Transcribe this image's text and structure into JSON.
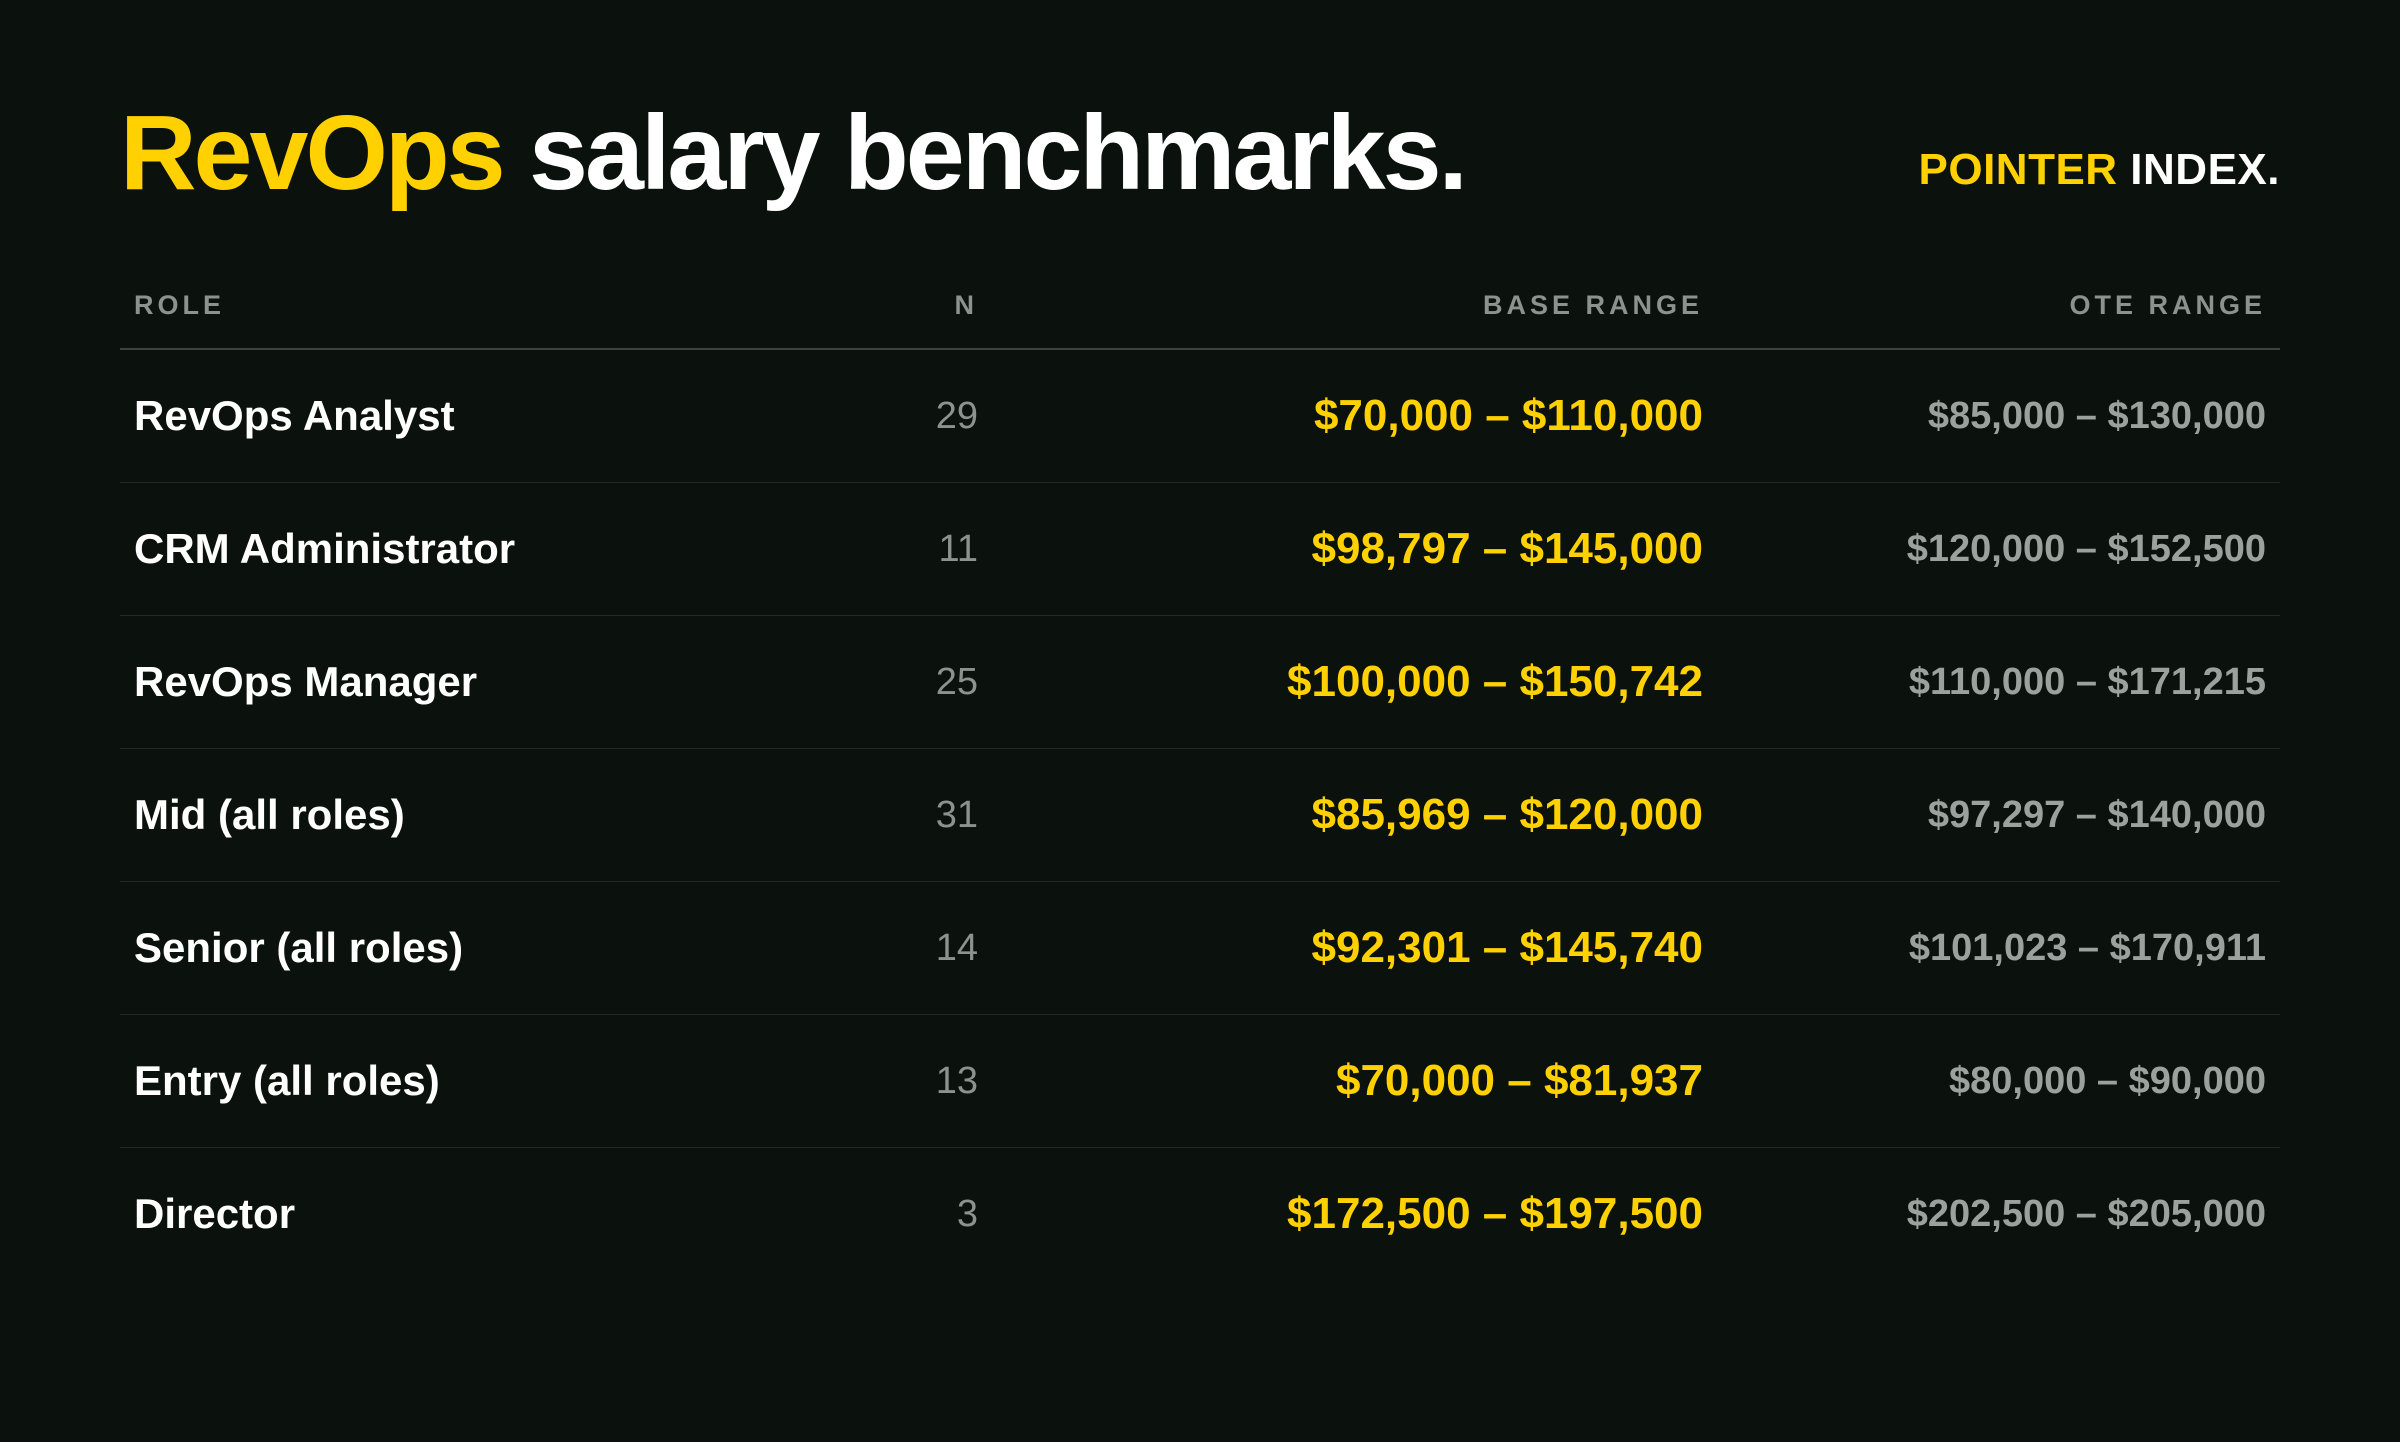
{
  "header": {
    "title_accent": "RevOps",
    "title_rest": " salary benchmarks.",
    "brand_accent": "POINTER",
    "brand_rest": " INDEX."
  },
  "colors": {
    "background": "#0b120e",
    "accent": "#ffd100",
    "text_primary": "#ffffff",
    "text_muted": "#8c938f"
  },
  "chart_data": {
    "type": "table",
    "columns": [
      "ROLE",
      "N",
      "BASE RANGE",
      "OTE RANGE"
    ],
    "rows": [
      {
        "role": "RevOps Analyst",
        "n": "29",
        "base_range": "$70,000 – $110,000",
        "ote_range": "$85,000 – $130,000"
      },
      {
        "role": "CRM Administrator",
        "n": "11",
        "base_range": "$98,797 – $145,000",
        "ote_range": "$120,000 – $152,500"
      },
      {
        "role": "RevOps Manager",
        "n": "25",
        "base_range": "$100,000 – $150,742",
        "ote_range": "$110,000 – $171,215"
      },
      {
        "role": "Mid (all roles)",
        "n": "31",
        "base_range": "$85,969 – $120,000",
        "ote_range": "$97,297 – $140,000"
      },
      {
        "role": "Senior (all roles)",
        "n": "14",
        "base_range": "$92,301 – $145,740",
        "ote_range": "$101,023 – $170,911"
      },
      {
        "role": "Entry (all roles)",
        "n": "13",
        "base_range": "$70,000 – $81,937",
        "ote_range": "$80,000 – $90,000"
      },
      {
        "role": "Director",
        "n": "3",
        "base_range": "$172,500 – $197,500",
        "ote_range": "$202,500 – $205,000"
      }
    ]
  }
}
